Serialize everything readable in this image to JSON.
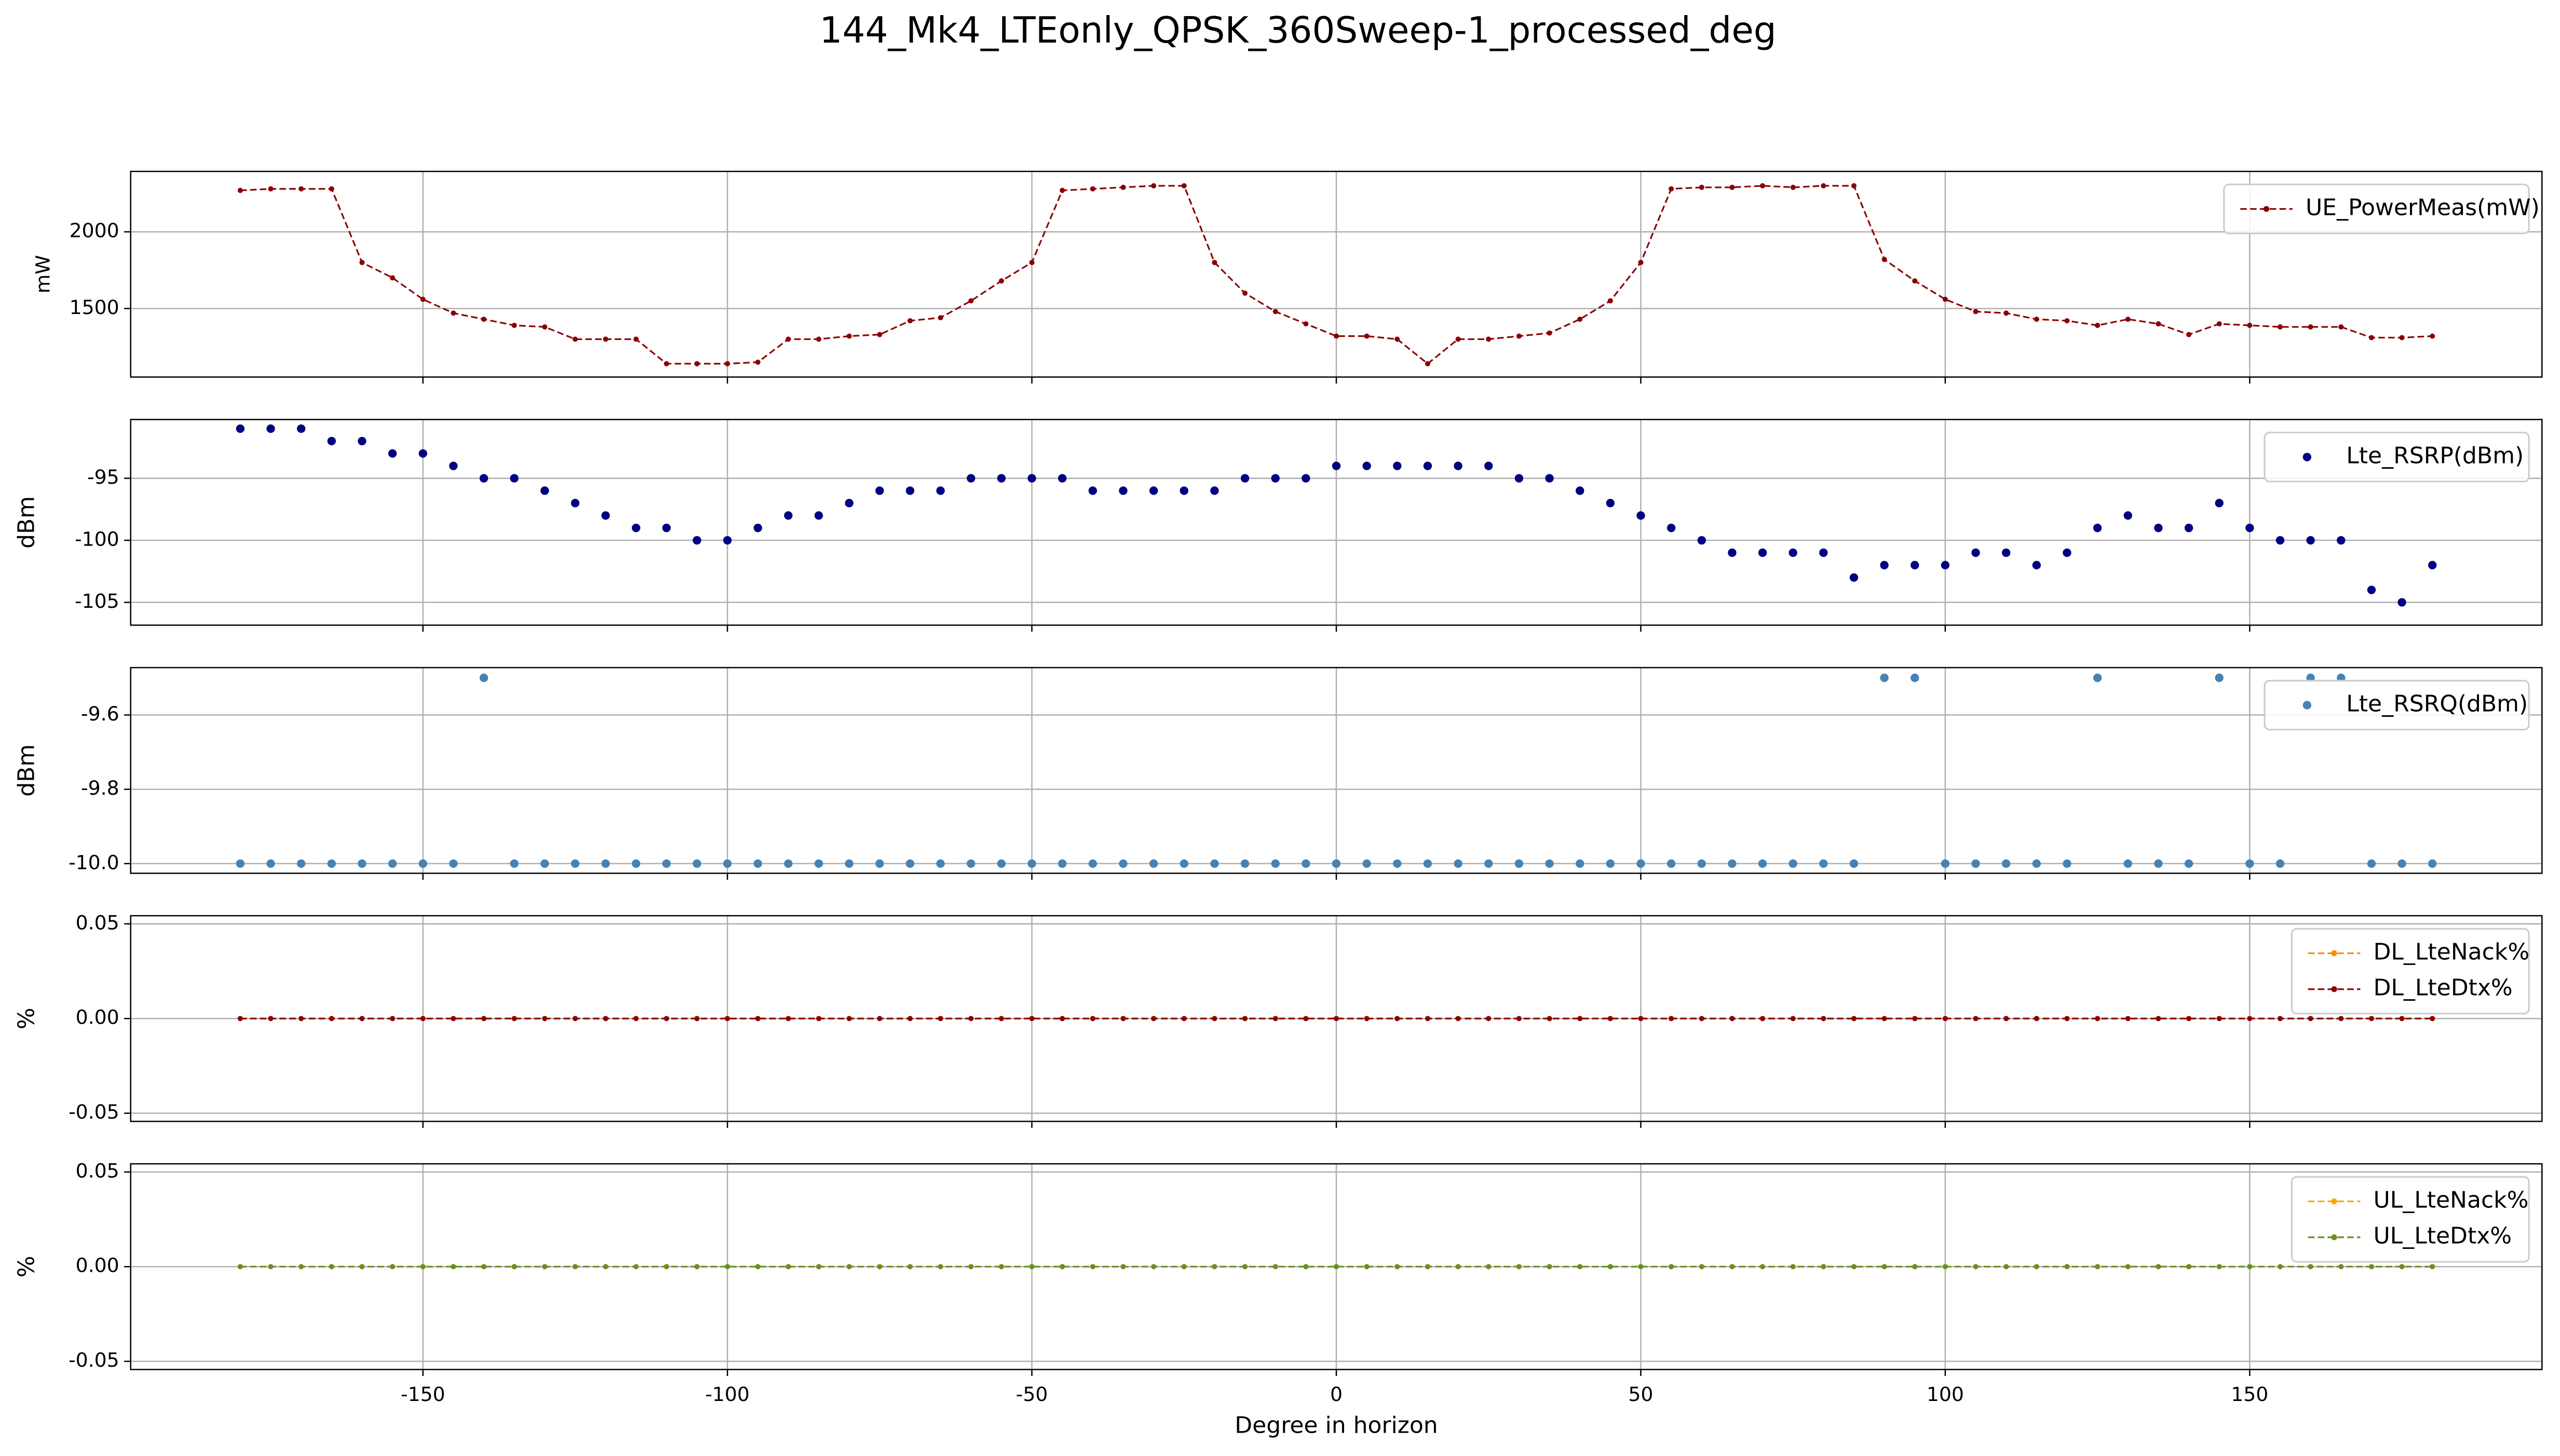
{
  "title": "144_Mk4_LTEonly_QPSK_360Sweep-1_processed_deg",
  "chart_data": [
    {
      "type": "line",
      "ylabel": "mW",
      "xlim": [
        -198,
        198
      ],
      "xticks": [
        -150,
        -100,
        -50,
        0,
        50,
        100,
        150
      ],
      "ylim": [
        1053,
        2394
      ],
      "yticks": [
        1500,
        2000
      ],
      "grid": true,
      "legend": "upper right",
      "x": [
        -180,
        -175,
        -170,
        -165,
        -160,
        -155,
        -150,
        -145,
        -140,
        -135,
        -130,
        -125,
        -120,
        -115,
        -110,
        -105,
        -100,
        -95,
        -90,
        -85,
        -80,
        -75,
        -70,
        -65,
        -60,
        -55,
        -50,
        -45,
        -40,
        -35,
        -30,
        -25,
        -20,
        -15,
        -10,
        -5,
        0,
        5,
        10,
        15,
        20,
        25,
        30,
        35,
        40,
        45,
        50,
        55,
        60,
        65,
        70,
        75,
        80,
        85,
        90,
        95,
        100,
        105,
        110,
        115,
        120,
        125,
        130,
        135,
        140,
        145,
        150,
        155,
        160,
        165,
        170,
        175,
        180
      ],
      "series": [
        {
          "name": "UE_PowerMeas(mW)",
          "color": "#8b0000",
          "values": [
            2270,
            2280,
            2280,
            2280,
            1800,
            1700,
            1560,
            1470,
            1430,
            1390,
            1380,
            1300,
            1300,
            1300,
            1140,
            1140,
            1140,
            1150,
            1300,
            1300,
            1320,
            1330,
            1420,
            1440,
            1550,
            1680,
            1800,
            2270,
            2280,
            2290,
            2300,
            2300,
            1800,
            1600,
            1480,
            1400,
            1320,
            1320,
            1300,
            1140,
            1300,
            1300,
            1320,
            1340,
            1430,
            1550,
            1800,
            2280,
            2290,
            2290,
            2300,
            2290,
            2300,
            2300,
            1820,
            1680,
            1560,
            1480,
            1470,
            1430,
            1420,
            1390,
            1430,
            1400,
            1330,
            1400,
            1390,
            1380,
            1380,
            1380,
            1310,
            1310,
            1320
          ]
        }
      ]
    },
    {
      "type": "scatter",
      "ylabel": "dBm",
      "xlim": [
        -198,
        198
      ],
      "xticks": [
        -150,
        -100,
        -50,
        0,
        50,
        100,
        150
      ],
      "ylim": [
        -106.84,
        -90.26
      ],
      "yticks": [
        -105,
        -100,
        -95
      ],
      "grid": true,
      "legend": "upper right",
      "x": [
        -180,
        -175,
        -170,
        -165,
        -160,
        -155,
        -150,
        -145,
        -140,
        -135,
        -130,
        -125,
        -120,
        -115,
        -110,
        -105,
        -100,
        -95,
        -90,
        -85,
        -80,
        -75,
        -70,
        -65,
        -60,
        -55,
        -50,
        -45,
        -40,
        -35,
        -30,
        -25,
        -20,
        -15,
        -10,
        -5,
        0,
        5,
        10,
        15,
        20,
        25,
        30,
        35,
        40,
        45,
        50,
        55,
        60,
        65,
        70,
        75,
        80,
        85,
        90,
        95,
        100,
        105,
        110,
        115,
        120,
        125,
        130,
        135,
        140,
        145,
        150,
        155,
        160,
        165,
        170,
        175,
        180
      ],
      "series": [
        {
          "name": "Lte_RSRP(dBm)",
          "color": "#000080",
          "values": [
            -91,
            -91,
            -91,
            -92,
            -92,
            -93,
            -93,
            -94,
            -95,
            -95,
            -96,
            -97,
            -98,
            -99,
            -99,
            -100,
            -100,
            -99,
            -98,
            -98,
            -97,
            -96,
            -96,
            -96,
            -95,
            -95,
            -95,
            -95,
            -96,
            -96,
            -96,
            -96,
            -96,
            -95,
            -95,
            -95,
            -94,
            -94,
            -94,
            -94,
            -94,
            -94,
            -95,
            -95,
            -96,
            -97,
            -98,
            -99,
            -100,
            -101,
            -101,
            -101,
            -101,
            -103,
            -102,
            -102,
            -102,
            -101,
            -101,
            -102,
            -101,
            -99,
            -98,
            -99,
            -99,
            -97,
            -99,
            -100,
            -100,
            -100,
            -104,
            -105,
            -102
          ]
        }
      ]
    },
    {
      "type": "scatter",
      "ylabel": "dBm",
      "xlim": [
        -198,
        198
      ],
      "xticks": [
        -150,
        -100,
        -50,
        0,
        50,
        100,
        150
      ],
      "ylim": [
        -10.026,
        -9.4725
      ],
      "yticks": [
        {
          "value": -10,
          "label": "-10.0"
        },
        -9.8,
        -9.6
      ],
      "grid": true,
      "legend": "upper right",
      "x": [
        -180,
        -175,
        -170,
        -165,
        -160,
        -155,
        -150,
        -145,
        -140,
        -135,
        -130,
        -125,
        -120,
        -115,
        -110,
        -105,
        -100,
        -95,
        -90,
        -85,
        -80,
        -75,
        -70,
        -65,
        -60,
        -55,
        -50,
        -45,
        -40,
        -35,
        -30,
        -25,
        -20,
        -15,
        -10,
        -5,
        0,
        5,
        10,
        15,
        20,
        25,
        30,
        35,
        40,
        45,
        50,
        55,
        60,
        65,
        70,
        75,
        80,
        85,
        90,
        95,
        100,
        105,
        110,
        115,
        120,
        125,
        130,
        135,
        140,
        145,
        150,
        155,
        160,
        165,
        170,
        175,
        180
      ],
      "series": [
        {
          "name": "Lte_RSRQ(dBm)",
          "color": "#4682b4",
          "values": [
            -10,
            -10,
            -10,
            -10,
            -10,
            -10,
            -10,
            -10,
            -9.5,
            -10,
            -10,
            -10,
            -10,
            -10,
            -10,
            -10,
            -10,
            -10,
            -10,
            -10,
            -10,
            -10,
            -10,
            -10,
            -10,
            -10,
            -10,
            -10,
            -10,
            -10,
            -10,
            -10,
            -10,
            -10,
            -10,
            -10,
            -10,
            -10,
            -10,
            -10,
            -10,
            -10,
            -10,
            -10,
            -10,
            -10,
            -10,
            -10,
            -10,
            -10,
            -10,
            -10,
            -10,
            -10,
            -9.5,
            -9.5,
            -10,
            -10,
            -10,
            -10,
            -10,
            -9.5,
            -10,
            -10,
            -10,
            -9.5,
            -10,
            -10,
            -9.5,
            -9.5,
            -10,
            -10,
            -10
          ]
        }
      ]
    },
    {
      "type": "line",
      "ylabel": "%",
      "xlim": [
        -198,
        198
      ],
      "xticks": [
        -150,
        -100,
        -50,
        0,
        50,
        100,
        150
      ],
      "ylim": [
        -0.0543,
        0.0543
      ],
      "yticks": [
        {
          "value": -0.05,
          "label": "-0.05"
        },
        {
          "value": 0,
          "label": "0.00"
        },
        0.05
      ],
      "grid": true,
      "legend": "upper right",
      "x": [
        -180,
        -175,
        -170,
        -165,
        -160,
        -155,
        -150,
        -145,
        -140,
        -135,
        -130,
        -125,
        -120,
        -115,
        -110,
        -105,
        -100,
        -95,
        -90,
        -85,
        -80,
        -75,
        -70,
        -65,
        -60,
        -55,
        -50,
        -45,
        -40,
        -35,
        -30,
        -25,
        -20,
        -15,
        -10,
        -5,
        0,
        5,
        10,
        15,
        20,
        25,
        30,
        35,
        40,
        45,
        50,
        55,
        60,
        65,
        70,
        75,
        80,
        85,
        90,
        95,
        100,
        105,
        110,
        115,
        120,
        125,
        130,
        135,
        140,
        145,
        150,
        155,
        160,
        165,
        170,
        175,
        180
      ],
      "series": [
        {
          "name": "DL_LteNack%",
          "color": "#ff8c00",
          "values": [
            0,
            0,
            0,
            0,
            0,
            0,
            0,
            0,
            0,
            0,
            0,
            0,
            0,
            0,
            0,
            0,
            0,
            0,
            0,
            0,
            0,
            0,
            0,
            0,
            0,
            0,
            0,
            0,
            0,
            0,
            0,
            0,
            0,
            0,
            0,
            0,
            0,
            0,
            0,
            0,
            0,
            0,
            0,
            0,
            0,
            0,
            0,
            0,
            0,
            0,
            0,
            0,
            0,
            0,
            0,
            0,
            0,
            0,
            0,
            0,
            0,
            0,
            0,
            0,
            0,
            0,
            0,
            0,
            0,
            0,
            0,
            0,
            0
          ]
        },
        {
          "name": "DL_LteDtx%",
          "color": "#8b0000",
          "values": [
            0,
            0,
            0,
            0,
            0,
            0,
            0,
            0,
            0,
            0,
            0,
            0,
            0,
            0,
            0,
            0,
            0,
            0,
            0,
            0,
            0,
            0,
            0,
            0,
            0,
            0,
            0,
            0,
            0,
            0,
            0,
            0,
            0,
            0,
            0,
            0,
            0,
            0,
            0,
            0,
            0,
            0,
            0,
            0,
            0,
            0,
            0,
            0,
            0,
            0,
            0,
            0,
            0,
            0,
            0,
            0,
            0,
            0,
            0,
            0,
            0,
            0,
            0,
            0,
            0,
            0,
            0,
            0,
            0,
            0,
            0,
            0,
            0
          ]
        }
      ]
    },
    {
      "type": "line",
      "ylabel": "%",
      "xlabel": "Degree in horizon",
      "xlim": [
        -198,
        198
      ],
      "xticks": [
        -150,
        -100,
        -50,
        0,
        50,
        100,
        150
      ],
      "ylim": [
        -0.0543,
        0.0543
      ],
      "yticks": [
        {
          "value": -0.05,
          "label": "-0.05"
        },
        {
          "value": 0,
          "label": "0.00"
        },
        0.05
      ],
      "grid": true,
      "legend": "upper right",
      "x": [
        -180,
        -175,
        -170,
        -165,
        -160,
        -155,
        -150,
        -145,
        -140,
        -135,
        -130,
        -125,
        -120,
        -115,
        -110,
        -105,
        -100,
        -95,
        -90,
        -85,
        -80,
        -75,
        -70,
        -65,
        -60,
        -55,
        -50,
        -45,
        -40,
        -35,
        -30,
        -25,
        -20,
        -15,
        -10,
        -5,
        0,
        5,
        10,
        15,
        20,
        25,
        30,
        35,
        40,
        45,
        50,
        55,
        60,
        65,
        70,
        75,
        80,
        85,
        90,
        95,
        100,
        105,
        110,
        115,
        120,
        125,
        130,
        135,
        140,
        145,
        150,
        155,
        160,
        165,
        170,
        175,
        180
      ],
      "series": [
        {
          "name": "UL_LteNack%",
          "color": "#ffa500",
          "values": [
            0,
            0,
            0,
            0,
            0,
            0,
            0,
            0,
            0,
            0,
            0,
            0,
            0,
            0,
            0,
            0,
            0,
            0,
            0,
            0,
            0,
            0,
            0,
            0,
            0,
            0,
            0,
            0,
            0,
            0,
            0,
            0,
            0,
            0,
            0,
            0,
            0,
            0,
            0,
            0,
            0,
            0,
            0,
            0,
            0,
            0,
            0,
            0,
            0,
            0,
            0,
            0,
            0,
            0,
            0,
            0,
            0,
            0,
            0,
            0,
            0,
            0,
            0,
            0,
            0,
            0,
            0,
            0,
            0,
            0,
            0,
            0,
            0
          ]
        },
        {
          "name": "UL_LteDtx%",
          "color": "#6b8e23",
          "values": [
            0,
            0,
            0,
            0,
            0,
            0,
            0,
            0,
            0,
            0,
            0,
            0,
            0,
            0,
            0,
            0,
            0,
            0,
            0,
            0,
            0,
            0,
            0,
            0,
            0,
            0,
            0,
            0,
            0,
            0,
            0,
            0,
            0,
            0,
            0,
            0,
            0,
            0,
            0,
            0,
            0,
            0,
            0,
            0,
            0,
            0,
            0,
            0,
            0,
            0,
            0,
            0,
            0,
            0,
            0,
            0,
            0,
            0,
            0,
            0,
            0,
            0,
            0,
            0,
            0,
            0,
            0,
            0,
            0,
            0,
            0,
            0,
            0
          ]
        }
      ]
    }
  ]
}
